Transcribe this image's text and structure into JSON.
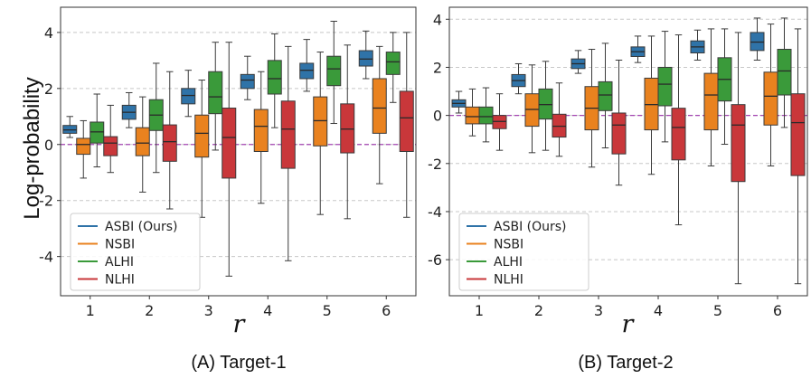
{
  "figure": {
    "ylabel": "Log-probability",
    "xlabel": "r"
  },
  "chart_data": [
    {
      "type": "boxplot",
      "caption": "(A) Target-1",
      "xlabel": "r",
      "ylabel": "Log-probability",
      "categories": [
        "1",
        "2",
        "3",
        "4",
        "5",
        "6"
      ],
      "ylim": [
        -5.4,
        4.9
      ],
      "yticks": [
        4,
        2,
        0,
        -2,
        -4
      ],
      "grid": "y-dashed",
      "reference_line": 0,
      "legend": {
        "placement": "lower-left",
        "entries": [
          "ASBI (Ours)",
          "NSBI",
          "ALHI",
          "NLHI"
        ]
      },
      "colors": [
        "#2f73a8",
        "#e9821f",
        "#3a9a3a",
        "#c9373a"
      ],
      "series": [
        {
          "name": "ASBI (Ours)",
          "boxes": [
            {
              "whislo": 0.25,
              "q1": 0.4,
              "med": 0.52,
              "q3": 0.68,
              "whishi": 1.0
            },
            {
              "whislo": 0.6,
              "q1": 0.9,
              "med": 1.15,
              "q3": 1.4,
              "whishi": 1.85
            },
            {
              "whislo": 1.0,
              "q1": 1.45,
              "med": 1.75,
              "q3": 2.0,
              "whishi": 2.65
            },
            {
              "whislo": 1.6,
              "q1": 2.0,
              "med": 2.3,
              "q3": 2.5,
              "whishi": 3.15
            },
            {
              "whislo": 1.9,
              "q1": 2.35,
              "med": 2.65,
              "q3": 2.9,
              "whishi": 3.75
            },
            {
              "whislo": 2.35,
              "q1": 2.8,
              "med": 3.05,
              "q3": 3.35,
              "whishi": 4.05
            }
          ]
        },
        {
          "name": "NSBI",
          "boxes": [
            {
              "whislo": -1.2,
              "q1": -0.35,
              "med": 0.0,
              "q3": 0.22,
              "whishi": 0.85
            },
            {
              "whislo": -1.7,
              "q1": -0.4,
              "med": 0.05,
              "q3": 0.6,
              "whishi": 1.7
            },
            {
              "whislo": -2.6,
              "q1": -0.45,
              "med": 0.4,
              "q3": 1.05,
              "whishi": 2.3
            },
            {
              "whislo": -2.1,
              "q1": -0.25,
              "med": 0.65,
              "q3": 1.25,
              "whishi": 2.6
            },
            {
              "whislo": -2.5,
              "q1": -0.05,
              "med": 0.85,
              "q3": 1.7,
              "whishi": 3.3
            },
            {
              "whislo": -1.4,
              "q1": 0.4,
              "med": 1.3,
              "q3": 2.35,
              "whishi": 3.5
            }
          ]
        },
        {
          "name": "ALHI",
          "boxes": [
            {
              "whislo": -0.8,
              "q1": 0.05,
              "med": 0.45,
              "q3": 0.8,
              "whishi": 1.8
            },
            {
              "whislo": -1.0,
              "q1": 0.5,
              "med": 1.05,
              "q3": 1.6,
              "whishi": 2.9
            },
            {
              "whislo": -0.2,
              "q1": 1.1,
              "med": 1.7,
              "q3": 2.6,
              "whishi": 3.65
            },
            {
              "whislo": 0.6,
              "q1": 1.8,
              "med": 2.35,
              "q3": 3.0,
              "whishi": 3.95
            },
            {
              "whislo": 0.75,
              "q1": 2.1,
              "med": 2.7,
              "q3": 3.15,
              "whishi": 4.4
            },
            {
              "whislo": 1.5,
              "q1": 2.5,
              "med": 2.95,
              "q3": 3.3,
              "whishi": 4.0
            }
          ]
        },
        {
          "name": "NLHI",
          "boxes": [
            {
              "whislo": -1.0,
              "q1": -0.4,
              "med": 0.05,
              "q3": 0.28,
              "whishi": 1.4
            },
            {
              "whislo": -2.3,
              "q1": -0.6,
              "med": 0.1,
              "q3": 0.7,
              "whishi": 2.6
            },
            {
              "whislo": -4.7,
              "q1": -1.2,
              "med": 0.25,
              "q3": 1.3,
              "whishi": 3.65
            },
            {
              "whislo": -4.15,
              "q1": -0.85,
              "med": 0.55,
              "q3": 1.55,
              "whishi": 3.5
            },
            {
              "whislo": -2.65,
              "q1": -0.3,
              "med": 0.55,
              "q3": 1.45,
              "whishi": 3.55
            },
            {
              "whislo": -2.6,
              "q1": -0.25,
              "med": 0.95,
              "q3": 1.9,
              "whishi": 4.0
            }
          ]
        }
      ]
    },
    {
      "type": "boxplot",
      "caption": "(B) Target-2",
      "xlabel": "r",
      "ylabel": "",
      "categories": [
        "1",
        "2",
        "3",
        "4",
        "5",
        "6"
      ],
      "ylim": [
        -7.5,
        4.5
      ],
      "yticks": [
        4,
        2,
        0,
        -2,
        -4,
        -6
      ],
      "grid": "y-dashed",
      "reference_line": 0,
      "legend": {
        "placement": "lower-left",
        "entries": [
          "ASBI (Ours)",
          "NSBI",
          "ALHI",
          "NLHI"
        ]
      },
      "colors": [
        "#2f73a8",
        "#e9821f",
        "#3a9a3a",
        "#c9373a"
      ],
      "series": [
        {
          "name": "ASBI (Ours)",
          "boxes": [
            {
              "whislo": 0.1,
              "q1": 0.35,
              "med": 0.5,
              "q3": 0.65,
              "whishi": 1.0
            },
            {
              "whislo": 0.9,
              "q1": 1.2,
              "med": 1.45,
              "q3": 1.7,
              "whishi": 2.15
            },
            {
              "whislo": 1.75,
              "q1": 1.95,
              "med": 2.15,
              "q3": 2.35,
              "whishi": 2.7
            },
            {
              "whislo": 2.2,
              "q1": 2.45,
              "med": 2.65,
              "q3": 2.85,
              "whishi": 3.3
            },
            {
              "whislo": 2.3,
              "q1": 2.6,
              "med": 2.85,
              "q3": 3.1,
              "whishi": 3.55
            },
            {
              "whislo": 2.3,
              "q1": 2.7,
              "med": 3.05,
              "q3": 3.45,
              "whishi": 4.05
            }
          ]
        },
        {
          "name": "NSBI",
          "boxes": [
            {
              "whislo": -0.85,
              "q1": -0.35,
              "med": -0.05,
              "q3": 0.35,
              "whishi": 1.1
            },
            {
              "whislo": -1.55,
              "q1": -0.45,
              "med": 0.25,
              "q3": 0.9,
              "whishi": 2.1
            },
            {
              "whislo": -2.15,
              "q1": -0.6,
              "med": 0.3,
              "q3": 1.2,
              "whishi": 2.75
            },
            {
              "whislo": -2.45,
              "q1": -0.6,
              "med": 0.45,
              "q3": 1.55,
              "whishi": 3.3
            },
            {
              "whislo": -2.1,
              "q1": -0.6,
              "med": 0.85,
              "q3": 1.75,
              "whishi": 3.6
            },
            {
              "whislo": -2.1,
              "q1": -0.4,
              "med": 0.8,
              "q3": 1.8,
              "whishi": 3.8
            }
          ]
        },
        {
          "name": "ALHI",
          "boxes": [
            {
              "whislo": -1.1,
              "q1": -0.35,
              "med": -0.05,
              "q3": 0.35,
              "whishi": 1.15
            },
            {
              "whislo": -1.45,
              "q1": -0.15,
              "med": 0.45,
              "q3": 1.1,
              "whishi": 2.25
            },
            {
              "whislo": -1.35,
              "q1": 0.2,
              "med": 0.85,
              "q3": 1.4,
              "whishi": 3.0
            },
            {
              "whislo": -1.1,
              "q1": 0.4,
              "med": 1.3,
              "q3": 2.0,
              "whishi": 3.5
            },
            {
              "whislo": -1.2,
              "q1": 0.6,
              "med": 1.5,
              "q3": 2.4,
              "whishi": 3.6
            },
            {
              "whislo": -0.5,
              "q1": 0.85,
              "med": 1.85,
              "q3": 2.75,
              "whishi": 4.05
            }
          ]
        },
        {
          "name": "NLHI",
          "boxes": [
            {
              "whislo": -1.45,
              "q1": -0.55,
              "med": -0.25,
              "q3": 0.0,
              "whishi": 0.9
            },
            {
              "whislo": -1.7,
              "q1": -0.9,
              "med": -0.45,
              "q3": 0.05,
              "whishi": 1.35
            },
            {
              "whislo": -2.9,
              "q1": -1.6,
              "med": -0.4,
              "q3": 0.1,
              "whishi": 2.3
            },
            {
              "whislo": -4.55,
              "q1": -1.85,
              "med": -0.5,
              "q3": 0.3,
              "whishi": 3.35
            },
            {
              "whislo": -7.0,
              "q1": -2.75,
              "med": -0.4,
              "q3": 0.45,
              "whishi": 3.45
            },
            {
              "whislo": -7.0,
              "q1": -2.5,
              "med": -0.3,
              "q3": 0.9,
              "whishi": 3.6
            }
          ]
        }
      ]
    }
  ]
}
